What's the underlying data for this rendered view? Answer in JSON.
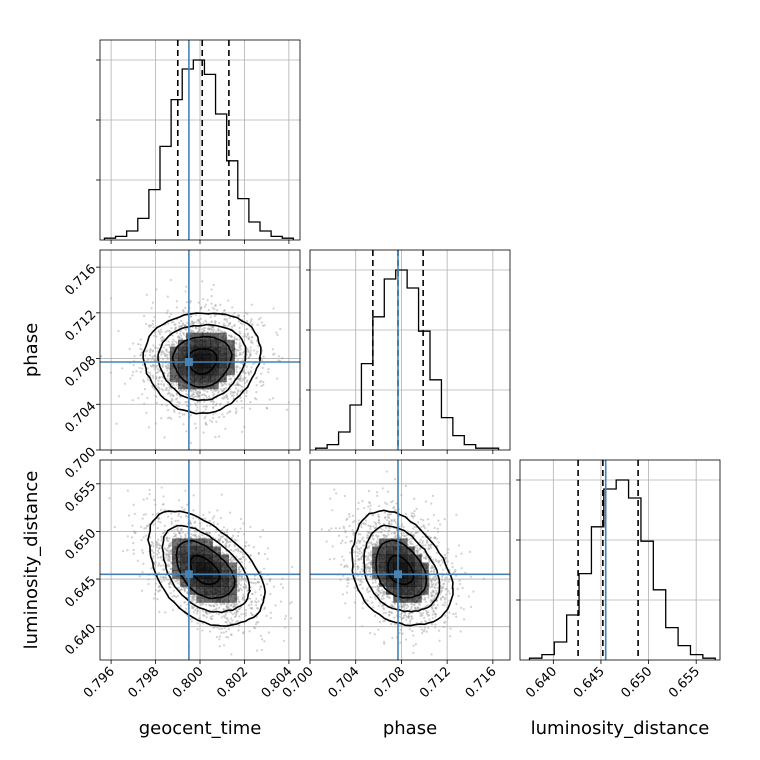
{
  "chart_data": {
    "type": "corner",
    "parameters": [
      {
        "name": "geocent_time",
        "range": [
          0.7955,
          0.8045
        ],
        "ticks": [
          0.796,
          0.798,
          0.8,
          0.802,
          0.804
        ],
        "tick_labels": [
          "0.796",
          "0.798",
          "0.800",
          "0.802",
          "0.804"
        ],
        "truth": 0.7995,
        "quantiles": [
          0.799,
          0.8001,
          0.8013
        ]
      },
      {
        "name": "phase",
        "range": [
          0.7,
          0.7175
        ],
        "ticks": [
          0.7,
          0.704,
          0.708,
          0.712,
          0.716
        ],
        "tick_labels": [
          "0.700",
          "0.704",
          "0.708",
          "0.712",
          "0.716"
        ],
        "truth": 0.7077,
        "quantiles": [
          0.7055,
          0.7077,
          0.7099
        ]
      },
      {
        "name": "luminosity_distance",
        "range": [
          0.6365,
          0.6575
        ],
        "ticks": [
          0.64,
          0.645,
          0.65,
          0.655
        ],
        "tick_labels": [
          "0.640",
          "0.645",
          "0.650",
          "0.655"
        ],
        "truth": 0.6455,
        "quantiles": [
          0.6426,
          0.6452,
          0.6489
        ]
      }
    ],
    "histograms": [
      {
        "parameter": "geocent_time",
        "bin_edges": [
          0.7957,
          0.7962,
          0.7967,
          0.7972,
          0.7977,
          0.7982,
          0.7987,
          0.7992,
          0.7997,
          0.8002,
          0.8007,
          0.8012,
          0.8017,
          0.8022,
          0.8027,
          0.8032,
          0.8037,
          0.8042
        ],
        "counts": [
          1,
          2,
          5,
          12,
          28,
          52,
          78,
          95,
          100,
          92,
          70,
          44,
          23,
          10,
          5,
          2,
          1
        ]
      },
      {
        "parameter": "phase",
        "bin_edges": [
          0.7005,
          0.7015,
          0.7025,
          0.7035,
          0.7045,
          0.7055,
          0.7065,
          0.7075,
          0.7085,
          0.7095,
          0.7105,
          0.7115,
          0.7125,
          0.7135,
          0.7145,
          0.7155,
          0.7165
        ],
        "counts": [
          1,
          3,
          10,
          25,
          48,
          74,
          95,
          100,
          90,
          66,
          39,
          18,
          8,
          3,
          1,
          1
        ]
      },
      {
        "parameter": "luminosity_distance",
        "bin_edges": [
          0.6375,
          0.6388,
          0.6401,
          0.6414,
          0.6427,
          0.644,
          0.6453,
          0.6466,
          0.6479,
          0.6492,
          0.6505,
          0.6518,
          0.6531,
          0.6544,
          0.6557,
          0.657
        ],
        "counts": [
          1,
          3,
          10,
          25,
          48,
          74,
          95,
          100,
          90,
          66,
          39,
          18,
          8,
          3,
          1
        ]
      }
    ],
    "scatter_panels": [
      {
        "x": "geocent_time",
        "y": "phase",
        "center": [
          0.8001,
          0.7078
        ],
        "sigma": [
          0.0013,
          0.0022
        ],
        "rho": 0.05
      },
      {
        "x": "geocent_time",
        "y": "luminosity_distance",
        "center": [
          0.8002,
          0.6459
        ],
        "sigma": [
          0.0013,
          0.003
        ],
        "rho": -0.45
      },
      {
        "x": "phase",
        "y": "luminosity_distance",
        "center": [
          0.7079,
          0.6459
        ],
        "sigma": [
          0.0022,
          0.003
        ],
        "rho": -0.3
      }
    ],
    "truth_color": "#4682b4",
    "grid": true
  }
}
